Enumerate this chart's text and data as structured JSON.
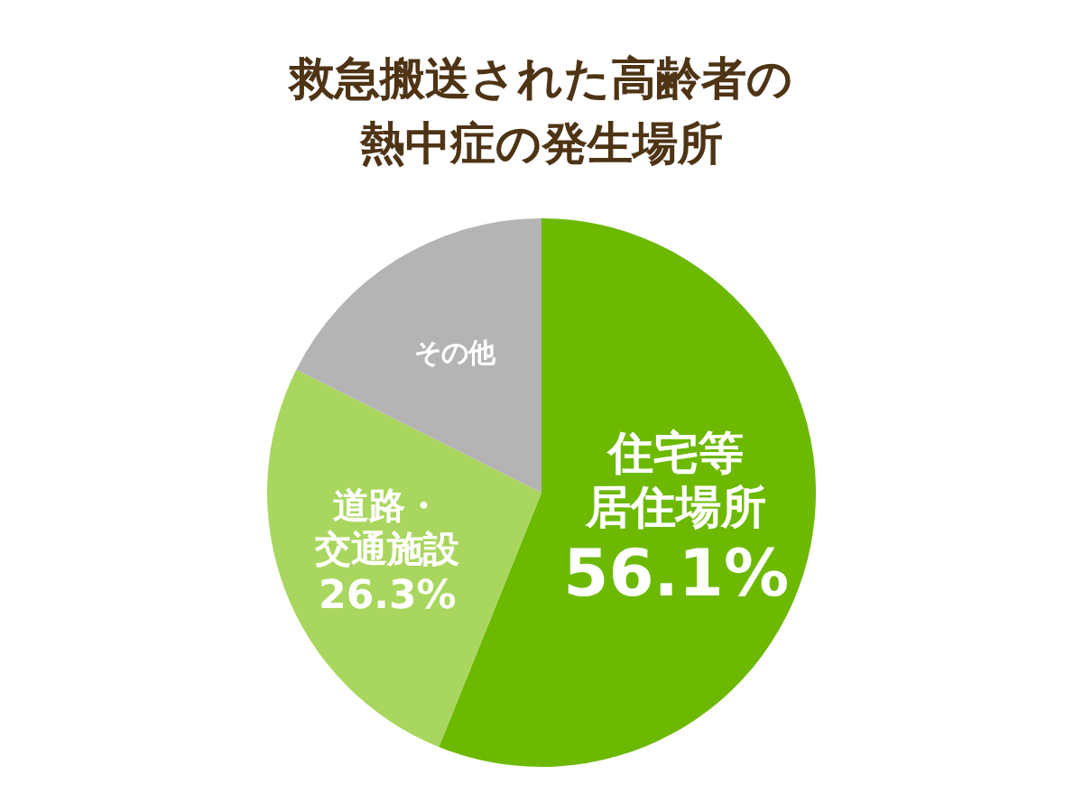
{
  "chart_data": {
    "type": "pie",
    "title": "救急搬送された高齢者の熱中症の発生場所",
    "categories": [
      "住宅等居住場所",
      "道路・交通施設",
      "その他"
    ],
    "values": [
      56.1,
      26.3,
      17.6
    ],
    "colors": [
      "#6cb900",
      "#a9d65e",
      "#b4b4b4"
    ],
    "value_labels": [
      "56.1%",
      "26.3%",
      null
    ]
  }
}
